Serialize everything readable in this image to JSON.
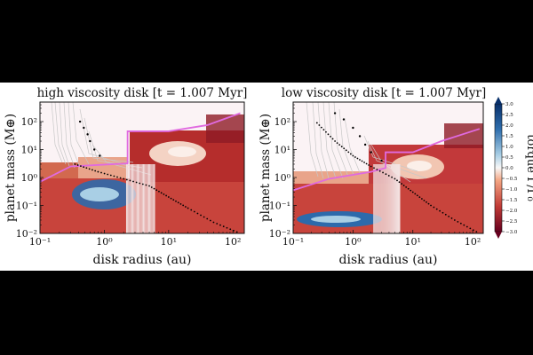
{
  "chart_data": [
    {
      "type": "heatmap",
      "title": "high viscosity disk [t = 1.007 Myr]",
      "xlabel": "disk radius (au)",
      "ylabel": "planet mass (M⊕)",
      "xscale": "log",
      "yscale": "log",
      "xlim": [
        0.1,
        150
      ],
      "ylim": [
        0.01,
        500
      ],
      "x_ticks": [
        "10⁻¹",
        "10⁰",
        "10¹",
        "10²"
      ],
      "y_ticks": [
        "10⁻²",
        "10⁻¹",
        "10⁰",
        "10¹",
        "10²"
      ],
      "max_mass_curve": {
        "x": [
          0.1,
          0.3,
          2.3,
          2.3,
          10,
          40,
          130
        ],
        "y": [
          0.7,
          2.5,
          3.2,
          45,
          45,
          75,
          200
        ]
      },
      "isolation_curve": {
        "x": [
          0.35,
          0.8,
          2,
          5,
          10,
          20,
          50,
          130
        ],
        "y": [
          3,
          1.6,
          0.9,
          0.5,
          0.2,
          0.08,
          0.025,
          0.01
        ]
      },
      "outward_region": {
        "x": [
          0.17,
          1.4
        ],
        "y": [
          0.04,
          1.1
        ]
      },
      "hot_region": {
        "x": [
          6,
          40
        ],
        "y": [
          0.5,
          20
        ]
      },
      "track_end_points": [
        [
          0.42,
          100
        ],
        [
          0.48,
          60
        ],
        [
          0.55,
          35
        ],
        [
          0.6,
          20
        ],
        [
          0.7,
          10
        ],
        [
          0.85,
          6
        ]
      ]
    },
    {
      "type": "heatmap",
      "title": "low viscosity disk [t = 1.007 Myr]",
      "xlabel": "disk radius (au)",
      "ylabel": "planet mass (M⊕)",
      "xscale": "log",
      "yscale": "log",
      "xlim": [
        0.1,
        150
      ],
      "ylim": [
        0.01,
        500
      ],
      "x_ticks": [
        "10⁻¹",
        "10⁰",
        "10¹",
        "10²"
      ],
      "y_ticks": [
        "10⁻²",
        "10⁻¹",
        "10⁰",
        "10¹",
        "10²"
      ],
      "max_mass_curve": {
        "x": [
          0.1,
          0.4,
          2,
          3.5,
          3.5,
          10,
          30,
          130
        ],
        "y": [
          0.35,
          0.9,
          1.6,
          2.2,
          8,
          8,
          20,
          55
        ]
      },
      "isolation_curve": {
        "x": [
          0.25,
          0.5,
          1,
          2,
          5,
          10,
          20,
          50,
          130
        ],
        "y": [
          90,
          20,
          6,
          2.5,
          0.9,
          0.3,
          0.1,
          0.03,
          0.01
        ]
      },
      "outward_region": {
        "x": [
          0.15,
          1.6
        ],
        "y": [
          0.012,
          0.12
        ]
      },
      "hot_region": {
        "x": [
          5,
          25
        ],
        "y": [
          0.5,
          8
        ]
      },
      "track_end_points": [
        [
          0.5,
          200
        ],
        [
          0.7,
          120
        ],
        [
          1.0,
          60
        ],
        [
          1.3,
          30
        ],
        [
          1.6,
          15
        ],
        [
          2.0,
          8
        ],
        [
          3,
          4
        ]
      ]
    }
  ],
  "colorbar": {
    "label": "torque Γ/Γ₀",
    "min": -3.0,
    "max": 3.0,
    "ticks": [
      "3.0",
      "2.5",
      "2.0",
      "1.5",
      "1.0",
      "0.5",
      "0.0",
      "−0.5",
      "−1.0",
      "−1.5",
      "−2.0",
      "−2.5",
      "−3.0"
    ],
    "colors": {
      "positive": "#08306b",
      "neutral": "#f7f7f7",
      "negative": "#67001f"
    }
  },
  "colors": {
    "max_mass_curve": "#e06ae0",
    "tracks": "#c8c8c8",
    "isolation_points": "#000000"
  }
}
